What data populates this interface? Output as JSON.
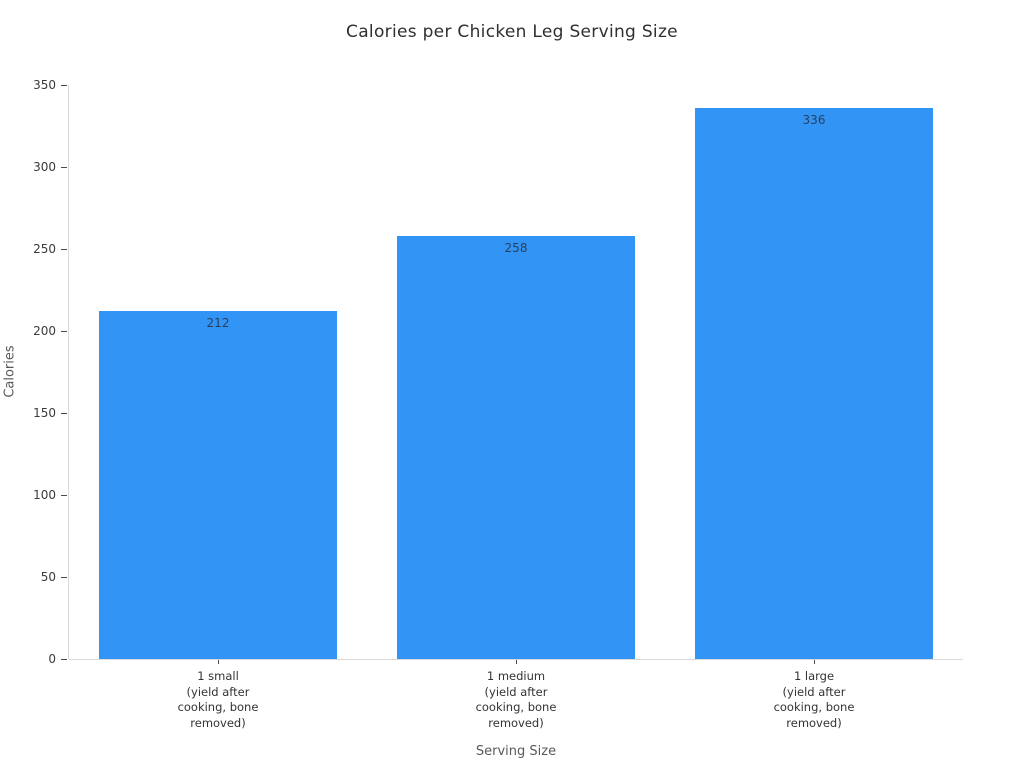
{
  "chart_data": {
    "type": "bar",
    "title": "Calories per Chicken Leg Serving Size",
    "xlabel": "Serving Size",
    "ylabel": "Calories",
    "categories": [
      "1 small\n(yield after\ncooking, bone\nremoved)",
      "1 medium\n(yield after\ncooking, bone\nremoved)",
      "1 large\n(yield after\ncooking, bone\nremoved)"
    ],
    "values": [
      212,
      258,
      336
    ],
    "value_labels": [
      "212",
      "258",
      "336"
    ],
    "ylim": [
      0,
      350
    ],
    "ytick_step": 50,
    "ytick_labels": [
      "0",
      "50",
      "100",
      "150",
      "200",
      "250",
      "300",
      "350"
    ],
    "grid": false,
    "legend_position": "none",
    "colors": {
      "bar": "#3295f5",
      "value_label": "#2a3f5f",
      "tick_label": "#3b3b3b",
      "axis_title": "#595959",
      "axis_line": "#d9d9d9",
      "title": "#2f2f2f",
      "background": "#ffffff"
    }
  }
}
